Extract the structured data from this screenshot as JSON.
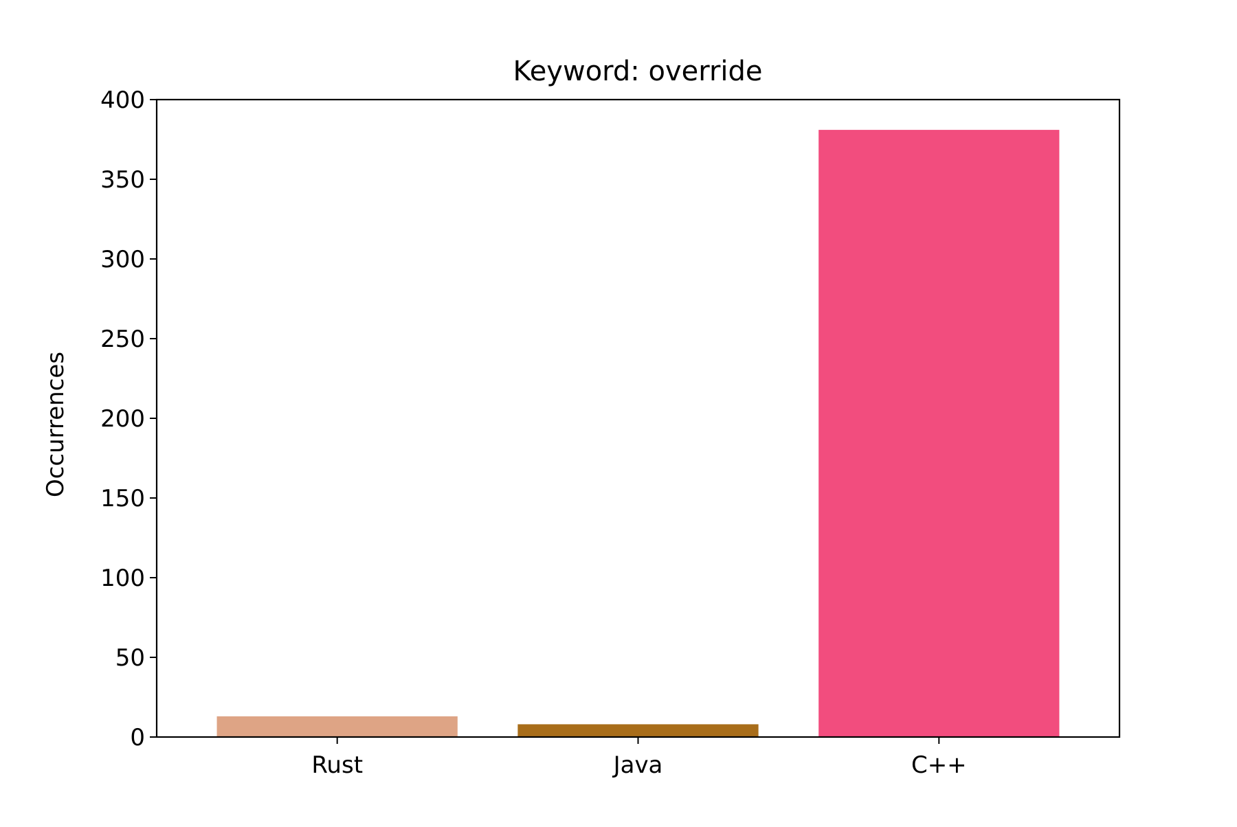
{
  "chart_data": {
    "type": "bar",
    "title": "Keyword: override",
    "xlabel": "",
    "ylabel": "Occurrences",
    "categories": [
      "Rust",
      "Java",
      "C++"
    ],
    "values": [
      13,
      8,
      381
    ],
    "colors": [
      "#dea485",
      "#a86d1a",
      "#f24d7e"
    ],
    "ylim": [
      0,
      400
    ],
    "yticks": [
      0,
      50,
      100,
      150,
      200,
      250,
      300,
      350,
      400
    ],
    "grid": false
  }
}
